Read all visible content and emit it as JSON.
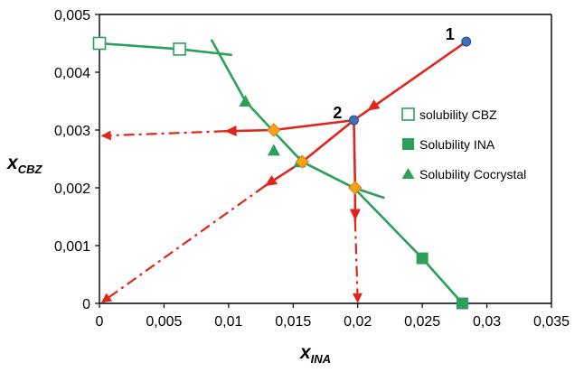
{
  "chart_data": {
    "type": "scatter",
    "title": "",
    "xlabel": {
      "main": "x",
      "sub": "INA"
    },
    "ylabel": {
      "main": "x",
      "sub": "CBZ"
    },
    "xlim": [
      0,
      0.035
    ],
    "ylim": [
      0,
      0.005
    ],
    "x_ticks": [
      "0",
      "0,005",
      "0,01",
      "0,015",
      "0,02",
      "0,025",
      "0,03",
      "0,035"
    ],
    "y_ticks": [
      "0",
      "0,001",
      "0,002",
      "0,003",
      "0,004",
      "0,005"
    ],
    "grid": false,
    "legend_position": "right",
    "colors": {
      "solubility": "#2ca05a",
      "path": "#e0261b",
      "intersection": "#f7a01a",
      "state_point": "#3f6fb8",
      "axis": "#000000"
    },
    "series": [
      {
        "name": "solubility CBZ",
        "marker": "open-square",
        "x": [
          0.0,
          0.0062
        ],
        "y": [
          0.0045,
          0.0044
        ]
      },
      {
        "name": "Solubility INA",
        "marker": "filled-square",
        "x": [
          0.025,
          0.0281
        ],
        "y": [
          0.00078,
          0.0
        ]
      },
      {
        "name": "Solubility Cocrystal",
        "marker": "filled-triangle",
        "x": [
          0.0113,
          0.0135,
          0.0155
        ],
        "y": [
          0.0035,
          0.00265,
          0.00245
        ]
      }
    ],
    "solubility_curves": [
      {
        "x": [
          0.0,
          0.0062,
          0.0102
        ],
        "y": [
          0.0045,
          0.0044,
          0.0043
        ]
      },
      {
        "x": [
          0.0087,
          0.0113,
          0.0135,
          0.0157,
          0.0197,
          0.022
        ],
        "y": [
          0.00455,
          0.0035,
          0.00297,
          0.00245,
          0.002,
          0.00183
        ]
      },
      {
        "x": [
          0.0197,
          0.025,
          0.0281
        ],
        "y": [
          0.002,
          0.00078,
          0.0
        ]
      }
    ],
    "state_points": [
      {
        "label": "1",
        "x": 0.0284,
        "y": 0.00453
      },
      {
        "label": "2",
        "x": 0.0197,
        "y": 0.00317
      }
    ],
    "intersections": [
      {
        "x": 0.0135,
        "y": 0.003
      },
      {
        "x": 0.0157,
        "y": 0.00245
      },
      {
        "x": 0.0198,
        "y": 0.002
      }
    ],
    "solid_paths": [
      {
        "x": [
          0.0284,
          0.0197
        ],
        "y": [
          0.00453,
          0.00317
        ],
        "arrow": true,
        "arrow_at": 0.88
      },
      {
        "x": [
          0.0197,
          0.0135
        ],
        "y": [
          0.00317,
          0.003
        ],
        "arrow": false
      },
      {
        "x": [
          0.0197,
          0.0157
        ],
        "y": [
          0.00317,
          0.00245
        ],
        "arrow": false
      },
      {
        "x": [
          0.0197,
          0.0198
        ],
        "y": [
          0.00317,
          0.002
        ],
        "arrow": false
      },
      {
        "x": [
          0.0135,
          0.0097
        ],
        "y": [
          0.003,
          0.00298
        ],
        "arrow": true,
        "arrow_at": 1.0
      },
      {
        "x": [
          0.0157,
          0.0128
        ],
        "y": [
          0.00245,
          0.00203
        ],
        "arrow": true,
        "arrow_at": 1.0
      },
      {
        "x": [
          0.0198,
          0.0198
        ],
        "y": [
          0.002,
          0.00143
        ],
        "arrow": true,
        "arrow_at": 1.0
      }
    ],
    "dashed_paths": [
      {
        "x": [
          0.0097,
          0.0002
        ],
        "y": [
          0.00298,
          0.0029
        ],
        "arrow": true
      },
      {
        "x": [
          0.0128,
          0.0002
        ],
        "y": [
          0.00203,
          2e-05
        ],
        "arrow": true
      },
      {
        "x": [
          0.0198,
          0.02
        ],
        "y": [
          0.00143,
          2e-05
        ],
        "arrow": true
      }
    ]
  }
}
